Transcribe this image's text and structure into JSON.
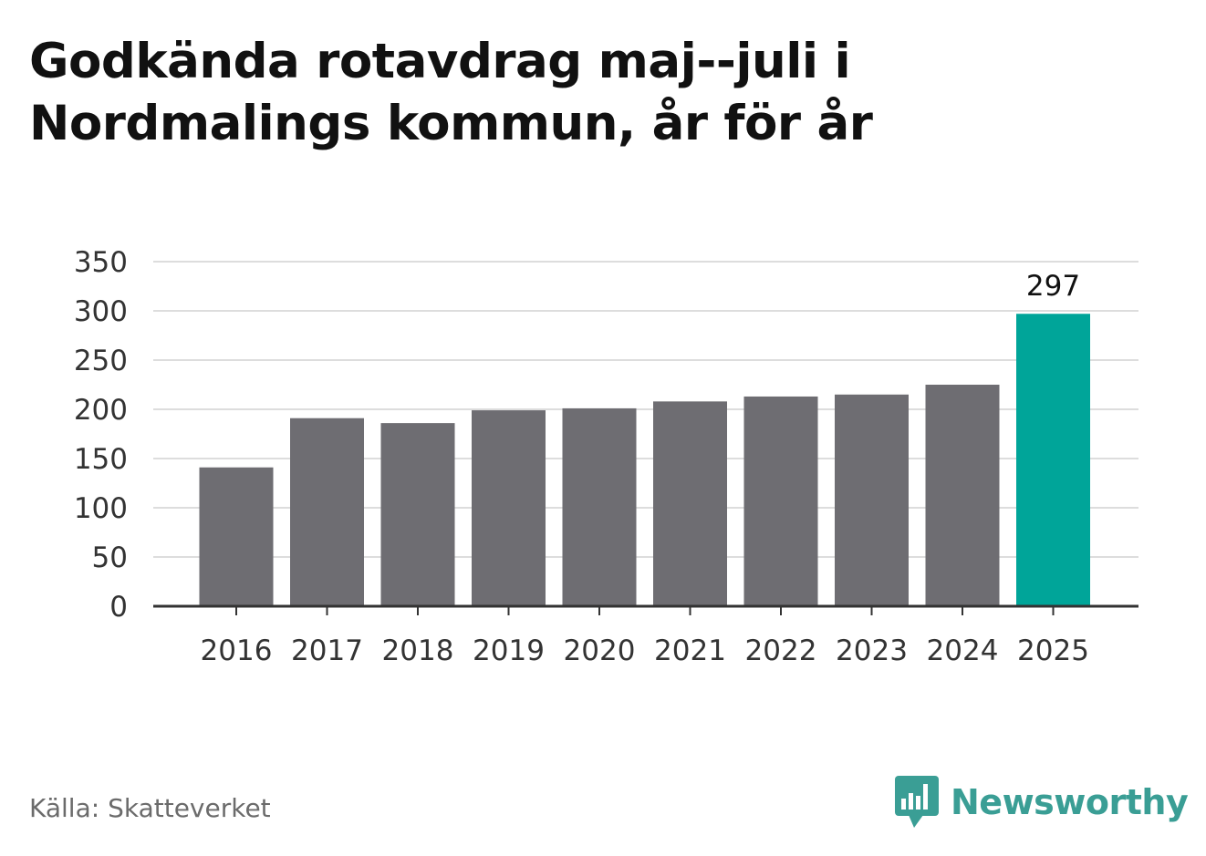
{
  "title_lines": [
    "Godkända rotavdrag maj--juli i",
    "Nordmalings kommun, år för år"
  ],
  "source": "Källa: Skatteverket",
  "brand": {
    "name": "Newsworthy",
    "icon": "bar-chart-speech-bubble-icon",
    "color": "#3a9e95"
  },
  "colors": {
    "bar": "#6e6d72",
    "highlight": "#00a599",
    "grid": "#dddddd",
    "axis": "#333333"
  },
  "chart_data": {
    "type": "bar",
    "title": "Godkända rotavdrag maj--juli i Nordmalings kommun, år för år",
    "categories": [
      "2016",
      "2017",
      "2018",
      "2019",
      "2020",
      "2021",
      "2022",
      "2023",
      "2024",
      "2025"
    ],
    "values": [
      141,
      191,
      186,
      199,
      201,
      208,
      213,
      215,
      225,
      297
    ],
    "highlight_index": 9,
    "data_labels": {
      "2025": "297"
    },
    "ylim": [
      0,
      350
    ],
    "yticks": [
      0,
      50,
      100,
      150,
      200,
      250,
      300,
      350
    ],
    "grid": true,
    "xlabel": "",
    "ylabel": ""
  }
}
